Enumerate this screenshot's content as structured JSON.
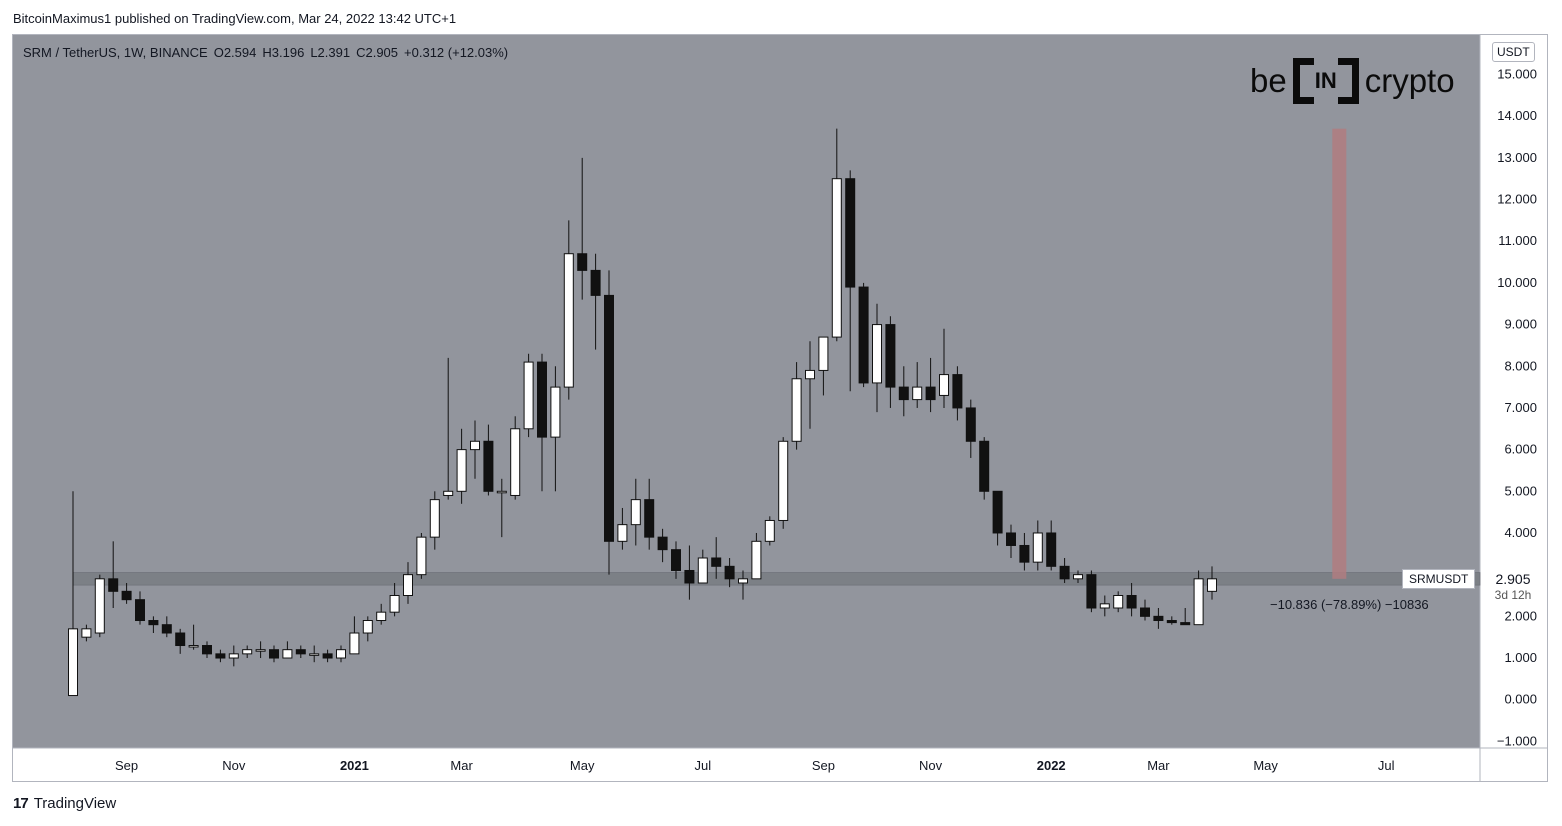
{
  "header": {
    "publisher_line": "BitcoinMaximus1 published on TradingView.com, Mar 24, 2022 13:42 UTC+1"
  },
  "legend": {
    "symbol": "SRM / TetherUS, 1W, BINANCE",
    "o_label": "O",
    "o": "2.594",
    "h_label": "H",
    "h": "3.196",
    "l_label": "L",
    "l": "2.391",
    "c_label": "C",
    "c": "2.905",
    "change": "+0.312 (+12.03%)"
  },
  "logo": {
    "left": "be",
    "box": "IN",
    "right": "crypto"
  },
  "axis_badge": "USDT",
  "symbol_tag": "SRMUSDT",
  "last_price": "2.905",
  "countdown": "3d 12h",
  "measure_label": "−10.836 (−78.89%) −10836",
  "footer": {
    "brand": "TradingView",
    "brand_mark": "17"
  },
  "colors": {
    "background": "#92959d",
    "up": "#ffffff",
    "down": "#111111",
    "support": "#7a7d84",
    "target": "#b07c80"
  },
  "chart_data": {
    "type": "candlestick",
    "timeframe": "1W",
    "ylim": [
      -1,
      15.5
    ],
    "y_ticks": [
      "15.000",
      "14.000",
      "13.000",
      "12.000",
      "11.000",
      "10.000",
      "9.000",
      "8.000",
      "7.000",
      "6.000",
      "5.000",
      "4.000",
      "3.000",
      "2.000",
      "1.000",
      "0.000",
      "−1.000"
    ],
    "y_tick_values": [
      15,
      14,
      13,
      12,
      11,
      10,
      9,
      8,
      7,
      6,
      5,
      4,
      3,
      2,
      1,
      0,
      -1
    ],
    "x_ticks": [
      {
        "label": "Sep",
        "index": 4,
        "bold": false
      },
      {
        "label": "Nov",
        "index": 12,
        "bold": false
      },
      {
        "label": "2021",
        "index": 21,
        "bold": true
      },
      {
        "label": "Mar",
        "index": 29,
        "bold": false
      },
      {
        "label": "May",
        "index": 38,
        "bold": false
      },
      {
        "label": "Jul",
        "index": 47,
        "bold": false
      },
      {
        "label": "Sep",
        "index": 56,
        "bold": false
      },
      {
        "label": "Nov",
        "index": 64,
        "bold": false
      },
      {
        "label": "2022",
        "index": 73,
        "bold": true
      },
      {
        "label": "Mar",
        "index": 81,
        "bold": false
      },
      {
        "label": "May",
        "index": 89,
        "bold": false
      },
      {
        "label": "Jul",
        "index": 98,
        "bold": false
      }
    ],
    "support_zone": [
      2.75,
      3.05
    ],
    "candles": [
      {
        "o": 0.1,
        "h": 5.0,
        "l": 0.1,
        "c": 1.7
      },
      {
        "o": 1.5,
        "h": 1.8,
        "l": 1.4,
        "c": 1.7
      },
      {
        "o": 1.6,
        "h": 3.0,
        "l": 1.5,
        "c": 2.9
      },
      {
        "o": 2.9,
        "h": 3.8,
        "l": 2.2,
        "c": 2.6
      },
      {
        "o": 2.6,
        "h": 2.8,
        "l": 2.3,
        "c": 2.4
      },
      {
        "o": 2.4,
        "h": 2.6,
        "l": 1.8,
        "c": 1.9
      },
      {
        "o": 1.9,
        "h": 2.0,
        "l": 1.6,
        "c": 1.8
      },
      {
        "o": 1.8,
        "h": 2.0,
        "l": 1.5,
        "c": 1.6
      },
      {
        "o": 1.6,
        "h": 1.7,
        "l": 1.1,
        "c": 1.3
      },
      {
        "o": 1.3,
        "h": 1.8,
        "l": 1.2,
        "c": 1.3
      },
      {
        "o": 1.3,
        "h": 1.4,
        "l": 1.0,
        "c": 1.1
      },
      {
        "o": 1.1,
        "h": 1.2,
        "l": 0.9,
        "c": 1.0
      },
      {
        "o": 1.0,
        "h": 1.3,
        "l": 0.8,
        "c": 1.1
      },
      {
        "o": 1.1,
        "h": 1.3,
        "l": 1.0,
        "c": 1.2
      },
      {
        "o": 1.2,
        "h": 1.4,
        "l": 1.0,
        "c": 1.2
      },
      {
        "o": 1.2,
        "h": 1.3,
        "l": 0.9,
        "c": 1.0
      },
      {
        "o": 1.0,
        "h": 1.4,
        "l": 1.0,
        "c": 1.2
      },
      {
        "o": 1.2,
        "h": 1.3,
        "l": 1.0,
        "c": 1.1
      },
      {
        "o": 1.1,
        "h": 1.3,
        "l": 0.9,
        "c": 1.1
      },
      {
        "o": 1.1,
        "h": 1.2,
        "l": 0.9,
        "c": 1.0
      },
      {
        "o": 1.0,
        "h": 1.3,
        "l": 0.9,
        "c": 1.2
      },
      {
        "o": 1.1,
        "h": 2.0,
        "l": 1.1,
        "c": 1.6
      },
      {
        "o": 1.6,
        "h": 2.0,
        "l": 1.4,
        "c": 1.9
      },
      {
        "o": 1.9,
        "h": 2.3,
        "l": 1.8,
        "c": 2.1
      },
      {
        "o": 2.1,
        "h": 2.8,
        "l": 2.0,
        "c": 2.5
      },
      {
        "o": 2.5,
        "h": 3.3,
        "l": 2.3,
        "c": 3.0
      },
      {
        "o": 3.0,
        "h": 4.0,
        "l": 2.9,
        "c": 3.9
      },
      {
        "o": 3.9,
        "h": 5.0,
        "l": 3.6,
        "c": 4.8
      },
      {
        "o": 4.9,
        "h": 8.2,
        "l": 4.8,
        "c": 5.0
      },
      {
        "o": 5.0,
        "h": 6.5,
        "l": 4.7,
        "c": 6.0
      },
      {
        "o": 6.0,
        "h": 6.7,
        "l": 5.3,
        "c": 6.2
      },
      {
        "o": 6.2,
        "h": 6.6,
        "l": 4.9,
        "c": 5.0
      },
      {
        "o": 5.0,
        "h": 5.3,
        "l": 3.9,
        "c": 5.0
      },
      {
        "o": 4.9,
        "h": 6.8,
        "l": 4.8,
        "c": 6.5
      },
      {
        "o": 6.5,
        "h": 8.3,
        "l": 6.3,
        "c": 8.1
      },
      {
        "o": 8.1,
        "h": 8.3,
        "l": 5.0,
        "c": 6.3
      },
      {
        "o": 6.3,
        "h": 8.0,
        "l": 5.0,
        "c": 7.5
      },
      {
        "o": 7.5,
        "h": 11.5,
        "l": 7.2,
        "c": 10.7
      },
      {
        "o": 10.7,
        "h": 13.0,
        "l": 9.6,
        "c": 10.3
      },
      {
        "o": 10.3,
        "h": 10.7,
        "l": 8.4,
        "c": 9.7
      },
      {
        "o": 9.7,
        "h": 10.3,
        "l": 3.0,
        "c": 3.8
      },
      {
        "o": 3.8,
        "h": 4.6,
        "l": 3.6,
        "c": 4.2
      },
      {
        "o": 4.2,
        "h": 5.3,
        "l": 3.7,
        "c": 4.8
      },
      {
        "o": 4.8,
        "h": 5.3,
        "l": 3.6,
        "c": 3.9
      },
      {
        "o": 3.9,
        "h": 4.1,
        "l": 3.3,
        "c": 3.6
      },
      {
        "o": 3.6,
        "h": 3.8,
        "l": 2.9,
        "c": 3.1
      },
      {
        "o": 3.1,
        "h": 3.7,
        "l": 2.4,
        "c": 2.8
      },
      {
        "o": 2.8,
        "h": 3.6,
        "l": 2.8,
        "c": 3.4
      },
      {
        "o": 3.4,
        "h": 3.9,
        "l": 2.9,
        "c": 3.2
      },
      {
        "o": 3.2,
        "h": 3.4,
        "l": 2.7,
        "c": 2.9
      },
      {
        "o": 2.8,
        "h": 3.1,
        "l": 2.4,
        "c": 2.9
      },
      {
        "o": 2.9,
        "h": 4.0,
        "l": 2.9,
        "c": 3.8
      },
      {
        "o": 3.8,
        "h": 4.4,
        "l": 3.7,
        "c": 4.3
      },
      {
        "o": 4.3,
        "h": 6.3,
        "l": 4.1,
        "c": 6.2
      },
      {
        "o": 6.2,
        "h": 8.1,
        "l": 6.0,
        "c": 7.7
      },
      {
        "o": 7.7,
        "h": 8.6,
        "l": 6.5,
        "c": 7.9
      },
      {
        "o": 7.9,
        "h": 8.7,
        "l": 7.3,
        "c": 8.7
      },
      {
        "o": 8.7,
        "h": 13.7,
        "l": 8.6,
        "c": 12.5
      },
      {
        "o": 12.5,
        "h": 12.7,
        "l": 7.4,
        "c": 9.9
      },
      {
        "o": 9.9,
        "h": 10.0,
        "l": 7.5,
        "c": 7.6
      },
      {
        "o": 7.6,
        "h": 9.5,
        "l": 6.9,
        "c": 9.0
      },
      {
        "o": 9.0,
        "h": 9.2,
        "l": 7.0,
        "c": 7.5
      },
      {
        "o": 7.5,
        "h": 8.0,
        "l": 6.8,
        "c": 7.2
      },
      {
        "o": 7.2,
        "h": 8.1,
        "l": 7.0,
        "c": 7.5
      },
      {
        "o": 7.5,
        "h": 8.2,
        "l": 6.9,
        "c": 7.2
      },
      {
        "o": 7.3,
        "h": 8.9,
        "l": 7.0,
        "c": 7.8
      },
      {
        "o": 7.8,
        "h": 8.0,
        "l": 6.7,
        "c": 7.0
      },
      {
        "o": 7.0,
        "h": 7.2,
        "l": 5.8,
        "c": 6.2
      },
      {
        "o": 6.2,
        "h": 6.3,
        "l": 4.8,
        "c": 5.0
      },
      {
        "o": 5.0,
        "h": 5.0,
        "l": 3.7,
        "c": 4.0
      },
      {
        "o": 4.0,
        "h": 4.2,
        "l": 3.4,
        "c": 3.7
      },
      {
        "o": 3.7,
        "h": 4.0,
        "l": 3.1,
        "c": 3.3
      },
      {
        "o": 3.3,
        "h": 4.3,
        "l": 3.1,
        "c": 4.0
      },
      {
        "o": 4.0,
        "h": 4.3,
        "l": 3.1,
        "c": 3.2
      },
      {
        "o": 3.2,
        "h": 3.4,
        "l": 2.8,
        "c": 2.9
      },
      {
        "o": 2.9,
        "h": 3.1,
        "l": 2.8,
        "c": 3.0
      },
      {
        "o": 3.0,
        "h": 3.1,
        "l": 2.1,
        "c": 2.2
      },
      {
        "o": 2.2,
        "h": 2.5,
        "l": 2.0,
        "c": 2.3
      },
      {
        "o": 2.2,
        "h": 2.6,
        "l": 2.1,
        "c": 2.5
      },
      {
        "o": 2.5,
        "h": 2.8,
        "l": 2.0,
        "c": 2.2
      },
      {
        "o": 2.2,
        "h": 2.4,
        "l": 1.9,
        "c": 2.0
      },
      {
        "o": 2.0,
        "h": 2.2,
        "l": 1.7,
        "c": 1.9
      },
      {
        "o": 1.9,
        "h": 2.0,
        "l": 1.8,
        "c": 1.85
      },
      {
        "o": 1.85,
        "h": 2.2,
        "l": 1.8,
        "c": 1.8
      },
      {
        "o": 1.8,
        "h": 3.1,
        "l": 1.8,
        "c": 2.9
      },
      {
        "o": 2.6,
        "h": 3.2,
        "l": 2.4,
        "c": 2.9
      }
    ],
    "target_bar": {
      "index": 94.5,
      "from": 2.9,
      "to": 13.7
    }
  }
}
